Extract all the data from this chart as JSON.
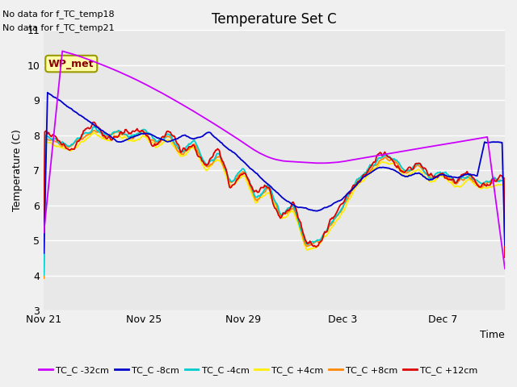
{
  "title": "Temperature Set C",
  "xlabel": "Time",
  "ylabel": "Temperature (C)",
  "ylim": [
    3.0,
    11.0
  ],
  "yticks": [
    3.0,
    4.0,
    5.0,
    6.0,
    7.0,
    8.0,
    9.0,
    10.0,
    11.0
  ],
  "plot_bg": "#e8e8e8",
  "fig_bg": "#f0f0f0",
  "text_ann": [
    "No data for f_TC_temp18",
    "No data for f_TC_temp21"
  ],
  "wp_met_label": "WP_met",
  "series_colors": {
    "TC_C -32cm": "#cc00ff",
    "TC_C -8cm": "#0000cc",
    "TC_C -4cm": "#00cccc",
    "TC_C +4cm": "#ffee00",
    "TC_C +8cm": "#ff8800",
    "TC_C +12cm": "#dd0000"
  },
  "xtick_labels": [
    "Nov 21",
    "Nov 25",
    "Nov 29",
    "Dec 3",
    "Dec 7"
  ],
  "xtick_positions": [
    0,
    4,
    8,
    12,
    16
  ],
  "xlim": [
    0,
    18.5
  ]
}
